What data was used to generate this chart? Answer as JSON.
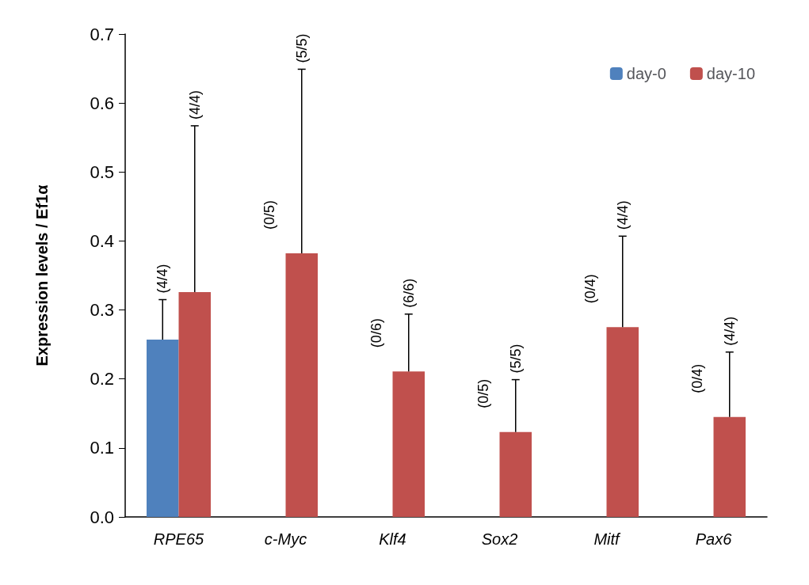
{
  "chart_data": {
    "type": "bar",
    "ylabel": "Expression levels / Ef1α",
    "categories": [
      "RPE65",
      "c-Myc",
      "Klf4",
      "Sox2",
      "Mitf",
      "Pax6"
    ],
    "series": [
      {
        "name": "day-0",
        "color": "#4f81bd",
        "values": [
          0.257,
          0,
          0,
          0,
          0,
          0
        ],
        "errors": [
          [
            0.257,
            0.315
          ],
          null,
          null,
          null,
          null,
          null
        ]
      },
      {
        "name": "day-10",
        "color": "#c0504d",
        "values": [
          0.326,
          0.382,
          0.211,
          0.123,
          0.275,
          0.145
        ],
        "errors": [
          [
            0.326,
            0.567
          ],
          [
            0.382,
            0.649
          ],
          [
            0.211,
            0.294
          ],
          [
            0.123,
            0.199
          ],
          [
            0.275,
            0.407
          ],
          [
            0.145,
            0.239
          ]
        ]
      }
    ],
    "annotations": [
      "(4/4)",
      "(4/4)",
      "(0/5)",
      "(5/5)",
      "(0/6)",
      "(6/6)",
      "(0/5)",
      "(5/5)",
      "(0/4)",
      "(4/4)",
      "(0/4)",
      "(4/4)"
    ],
    "ylim": [
      0,
      0.7
    ],
    "yticks": [
      {
        "value": 0,
        "label": "0.0"
      },
      0.1,
      0.2,
      0.3,
      0.4,
      0.5,
      0.6,
      0.7
    ],
    "grid": false,
    "legend": "top right"
  }
}
